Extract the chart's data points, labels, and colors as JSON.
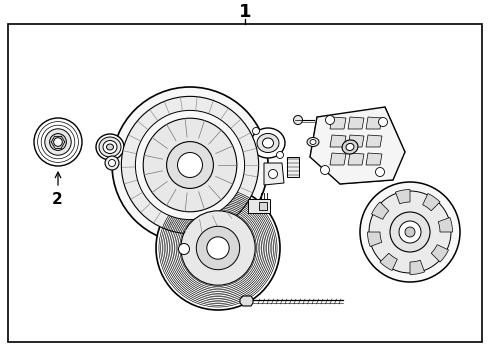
{
  "title": "1",
  "label_2": "2",
  "bg_color": "#ffffff",
  "border_color": "#000000",
  "line_color": "#000000",
  "title_fontsize": 13,
  "label_fontsize": 11,
  "fig_width": 4.9,
  "fig_height": 3.6,
  "dpi": 100
}
